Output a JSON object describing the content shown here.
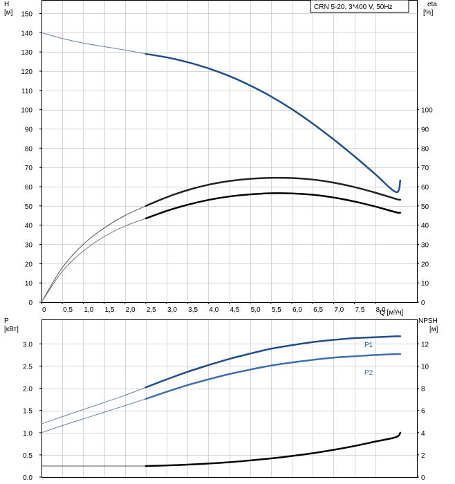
{
  "header": {
    "label": "CRN 5-20, 3*400 V, 50Hz"
  },
  "chart_data": [
    {
      "type": "line",
      "panel": "top",
      "xlabel": "Q [м³/ч]",
      "ylabel": "H",
      "ylabel_unit": "[м]",
      "y2label": "eta",
      "y2label_unit": "[%]",
      "xlim": [
        0,
        9
      ],
      "ylim": [
        0,
        157
      ],
      "y2lim": [
        0,
        157
      ],
      "x_ticks": [
        "0",
        "0,5",
        "1,0",
        "1,5",
        "2,0",
        "2,5",
        "3,0",
        "3,5",
        "4,0",
        "4,5",
        "5,0",
        "5,5",
        "6,0",
        "6,5",
        "7,0",
        "7,5",
        "8,0"
      ],
      "y_ticks": [
        "0",
        "10",
        "20",
        "30",
        "40",
        "50",
        "60",
        "70",
        "80",
        "90",
        "100",
        "110",
        "120",
        "130",
        "140",
        "150"
      ],
      "y2_ticks": [
        "0",
        "10",
        "20",
        "30",
        "40",
        "50",
        "60",
        "70",
        "80",
        "90",
        "100"
      ],
      "grid": true,
      "series": [
        {
          "key": "H_ext",
          "axis": "left",
          "color": "#6a7fa8",
          "x": [
            0,
            0.5,
            1.0,
            1.5,
            2.0,
            2.5
          ],
          "y": [
            140,
            137,
            134.6,
            132.8,
            131.0,
            129.0
          ]
        },
        {
          "key": "H",
          "axis": "left",
          "color": "#1f4e8c",
          "x": [
            2.5,
            3.0,
            3.5,
            4.0,
            4.5,
            5.0,
            5.5,
            6.0,
            6.5,
            7.0,
            7.5,
            8.0,
            8.5,
            9.0
          ],
          "y": [
            129.0,
            127.2,
            124.7,
            121.5,
            117.5,
            112.6,
            106.9,
            100.3,
            92.8,
            84.6,
            75.8,
            66.5,
            57.2,
            63.2
          ]
        },
        {
          "key": "eta_ext",
          "axis": "right",
          "color": "#555555",
          "x": [
            0,
            0.5,
            1.0,
            1.5,
            2.0,
            2.5
          ],
          "y": [
            0,
            18,
            30,
            38.5,
            45,
            50
          ]
        },
        {
          "key": "eta",
          "axis": "right",
          "color": "#222222",
          "x": [
            2.5,
            3.0,
            3.5,
            4.0,
            4.5,
            5.0,
            5.5,
            6.0,
            6.5,
            7.0,
            7.5,
            8.0,
            8.5,
            9.0
          ],
          "y": [
            50,
            54.5,
            58.2,
            61.0,
            62.9,
            64.1,
            64.6,
            64.5,
            63.7,
            62.1,
            59.8,
            56.9,
            53.6,
            53.2
          ]
        },
        {
          "key": "eta_total_ext",
          "axis": "left",
          "color": "#777777",
          "x": [
            0,
            0.5,
            1.0,
            1.5,
            2.0,
            2.5
          ],
          "y": [
            0,
            16,
            26.5,
            34,
            39.5,
            43.5
          ]
        },
        {
          "key": "eta_total",
          "axis": "left",
          "color": "#000000",
          "x": [
            2.5,
            3.0,
            3.5,
            4.0,
            4.5,
            5.0,
            5.5,
            6.0,
            6.5,
            7.0,
            7.5,
            8.0,
            8.5,
            9.0
          ],
          "y": [
            43.5,
            47.4,
            50.6,
            53.1,
            54.9,
            56.0,
            56.6,
            56.5,
            55.8,
            54.4,
            52.3,
            49.7,
            46.7,
            46.5
          ]
        }
      ]
    },
    {
      "type": "line",
      "panel": "bottom",
      "ylabel": "P",
      "ylabel_unit": "[кВт]",
      "y2label": "NPSH",
      "y2label_unit": "[м]",
      "xlim": [
        0,
        9
      ],
      "ylim": [
        0,
        3.55
      ],
      "y2lim": [
        0,
        14.2
      ],
      "y_ticks": [
        "0.0",
        "0.5",
        "1.0",
        "1.5",
        "2.0",
        "2.5",
        "3.0"
      ],
      "y2_ticks": [
        "0",
        "2",
        "4",
        "6",
        "8",
        "10",
        "12"
      ],
      "grid": true,
      "series": [
        {
          "key": "P1_ext",
          "axis": "left",
          "color": "#6a7fa8",
          "x": [
            0,
            0.5,
            1.0,
            1.5,
            2.0,
            2.5
          ],
          "y": [
            1.2,
            1.36,
            1.52,
            1.68,
            1.84,
            2.02
          ]
        },
        {
          "key": "P1",
          "name": "P1",
          "axis": "left",
          "color": "#1f4e8c",
          "x": [
            2.5,
            3.0,
            3.5,
            4.0,
            4.5,
            5.0,
            5.5,
            6.0,
            6.5,
            7.0,
            7.5,
            8.0,
            8.5,
            9.0
          ],
          "y": [
            2.02,
            2.2,
            2.37,
            2.52,
            2.66,
            2.78,
            2.89,
            2.97,
            3.04,
            3.09,
            3.13,
            3.15,
            3.17,
            3.17
          ]
        },
        {
          "key": "P2_ext",
          "axis": "left",
          "color": "#6a7fa8",
          "x": [
            0,
            0.5,
            1.0,
            1.5,
            2.0,
            2.5
          ],
          "y": [
            1.0,
            1.16,
            1.31,
            1.46,
            1.61,
            1.76
          ]
        },
        {
          "key": "P2",
          "name": "P2",
          "axis": "left",
          "color": "#3f6fb0",
          "x": [
            2.5,
            3.0,
            3.5,
            4.0,
            4.5,
            5.0,
            5.5,
            6.0,
            6.5,
            7.0,
            7.5,
            8.0,
            8.5,
            9.0
          ],
          "y": [
            1.76,
            1.92,
            2.07,
            2.2,
            2.32,
            2.42,
            2.51,
            2.58,
            2.64,
            2.69,
            2.72,
            2.75,
            2.77,
            2.77
          ]
        },
        {
          "key": "NPSH_ext",
          "axis": "right",
          "color": "#555555",
          "x": [
            0,
            2.5
          ],
          "y": [
            1.0,
            1.0
          ]
        },
        {
          "key": "NPSH",
          "axis": "right",
          "color": "#000000",
          "x": [
            2.5,
            3.0,
            3.5,
            4.0,
            4.5,
            5.0,
            5.5,
            6.0,
            6.5,
            7.0,
            7.5,
            8.0,
            8.5,
            9.0
          ],
          "y": [
            1.0,
            1.05,
            1.12,
            1.22,
            1.34,
            1.5,
            1.68,
            1.9,
            2.15,
            2.45,
            2.8,
            3.2,
            3.6,
            4.0
          ]
        }
      ]
    }
  ]
}
